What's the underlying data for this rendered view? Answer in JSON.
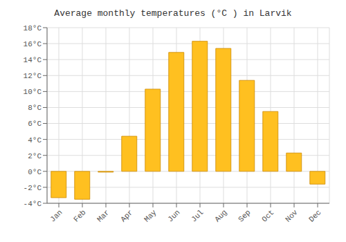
{
  "chart_data": {
    "type": "bar",
    "title": "Average monthly temperatures (°C ) in Larvik",
    "categories": [
      "Jan",
      "Feb",
      "Mar",
      "Apr",
      "May",
      "Jun",
      "Jul",
      "Aug",
      "Sep",
      "Oct",
      "Nov",
      "Dec"
    ],
    "values": [
      -3.3,
      -3.5,
      -0.1,
      4.4,
      10.3,
      14.9,
      16.3,
      15.4,
      11.4,
      7.5,
      2.3,
      -1.6
    ],
    "color": "#FFC020",
    "ylim": [
      -4,
      18
    ],
    "yticks": [
      {
        "value": -4,
        "label": "-4°C"
      },
      {
        "value": -2,
        "label": "-2°C"
      },
      {
        "value": 0,
        "label": "0°C"
      },
      {
        "value": 2,
        "label": "2°C"
      },
      {
        "value": 4,
        "label": "4°C"
      },
      {
        "value": 6,
        "label": "6°C"
      },
      {
        "value": 8,
        "label": "8°C"
      },
      {
        "value": 10,
        "label": "10°C"
      },
      {
        "value": 12,
        "label": "12°C"
      },
      {
        "value": 14,
        "label": "14°C"
      },
      {
        "value": 16,
        "label": "16°C"
      },
      {
        "value": 18,
        "label": "18°C"
      }
    ],
    "grid": true
  }
}
